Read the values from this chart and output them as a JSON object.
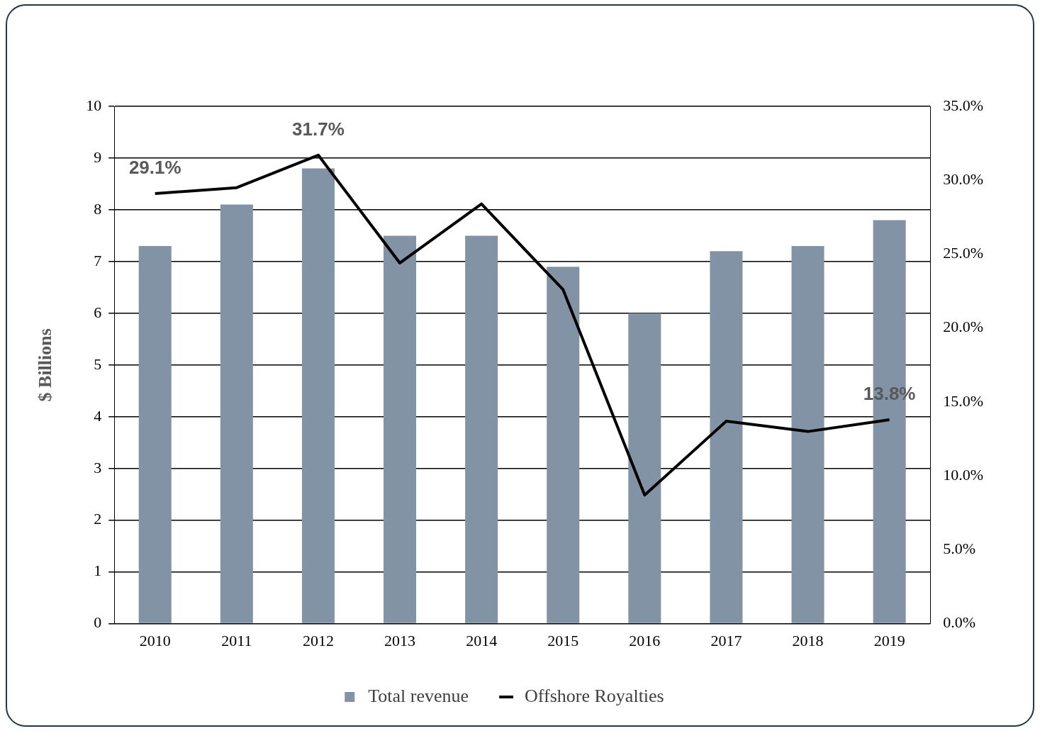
{
  "chart_data": {
    "type": "bar",
    "ylabel": "$ Billions",
    "categories": [
      "2010",
      "2011",
      "2012",
      "2013",
      "2014",
      "2015",
      "2016",
      "2017",
      "2018",
      "2019"
    ],
    "series": [
      {
        "name": "Total revenue",
        "color": "#8293a6",
        "values": [
          7.3,
          8.1,
          8.8,
          7.5,
          7.5,
          6.9,
          6.0,
          7.2,
          7.3,
          7.8
        ]
      },
      {
        "name": "Offshore Royalties",
        "type": "line",
        "axis": "y2",
        "color": "#000000",
        "values": [
          29.1,
          29.5,
          31.7,
          24.4,
          28.4,
          22.6,
          8.7,
          13.7,
          13.0,
          13.8
        ],
        "value_labels": [
          "29.1%",
          null,
          "31.7%",
          null,
          null,
          null,
          null,
          null,
          null,
          "13.8%"
        ]
      }
    ],
    "ylim": [
      0,
      10
    ],
    "yticks": [
      0,
      1,
      2,
      3,
      4,
      5,
      6,
      7,
      8,
      9,
      10
    ],
    "y2lim": [
      0,
      35
    ],
    "y2ticks": [
      {
        "value": 0,
        "label": "0.0%"
      },
      {
        "value": 5,
        "label": "5.0%"
      },
      {
        "value": 10,
        "label": "10.0%"
      },
      {
        "value": 15,
        "label": "15.0%"
      },
      {
        "value": 20,
        "label": "20.0%"
      },
      {
        "value": 25,
        "label": "25.0%"
      },
      {
        "value": 30,
        "label": "30.0%"
      },
      {
        "value": 35,
        "label": "35.0%"
      }
    ],
    "grid": "y",
    "legend": "bottom",
    "marker": "none",
    "line_style": "solid"
  }
}
